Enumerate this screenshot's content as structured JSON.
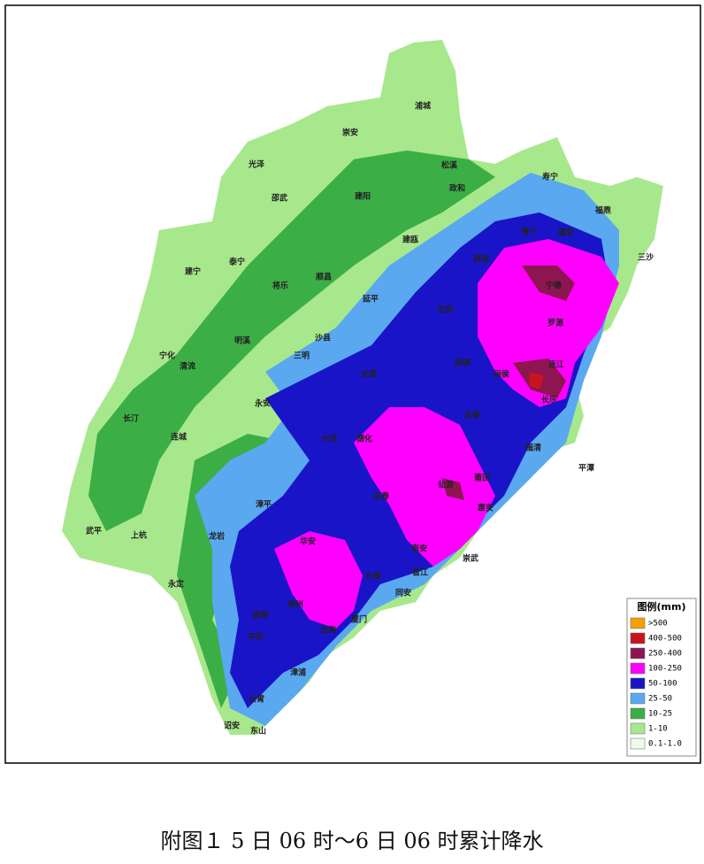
{
  "places": [
    "浦城",
    "崇安",
    "光泽",
    "松溪",
    "政和",
    "寿宁",
    "邵武",
    "建阳",
    "福鼎",
    "周宁",
    "福安",
    "建瓯",
    "三沙",
    "泰宁",
    "建宁",
    "将乐",
    "顺昌",
    "屏南",
    "延平",
    "古田",
    "宁德",
    "明溪",
    "沙县",
    "罗源",
    "宁化",
    "清流",
    "三明",
    "尤溪",
    "闽清",
    "连江",
    "闽侯",
    "长乐",
    "永安",
    "永泰",
    "长汀",
    "连城",
    "大田",
    "德化",
    "福清",
    "平潭",
    "莆田",
    "仙游",
    "永春",
    "漳平",
    "惠安",
    "武平",
    "上杭",
    "龙岩",
    "华安",
    "南安",
    "崇武",
    "永定",
    "长泰",
    "晋江",
    "同安",
    "南靖",
    "漳州",
    "龙海",
    "厦门",
    "平和",
    "漳浦",
    "云霄",
    "诏安",
    "东山"
  ],
  "legend": {
    "title": "图例(mm)",
    "items": [
      {
        "label": ">500",
        "color": "#f5a000"
      },
      {
        "label": "400-500",
        "color": "#c8141e"
      },
      {
        "label": "250-400",
        "color": "#8e1650"
      },
      {
        "label": "100-250",
        "color": "#ff00ff"
      },
      {
        "label": "50-100",
        "color": "#1a14c8"
      },
      {
        "label": "25-50",
        "color": "#5aa8f0"
      },
      {
        "label": "10-25",
        "color": "#3cae46"
      },
      {
        "label": "1-10",
        "color": "#a8e88c"
      },
      {
        "label": "0.1-1.0",
        "color": "#eefbe8"
      }
    ]
  },
  "caption": "附图１ 5 日 06 时～6 日 06 时累计降水"
}
